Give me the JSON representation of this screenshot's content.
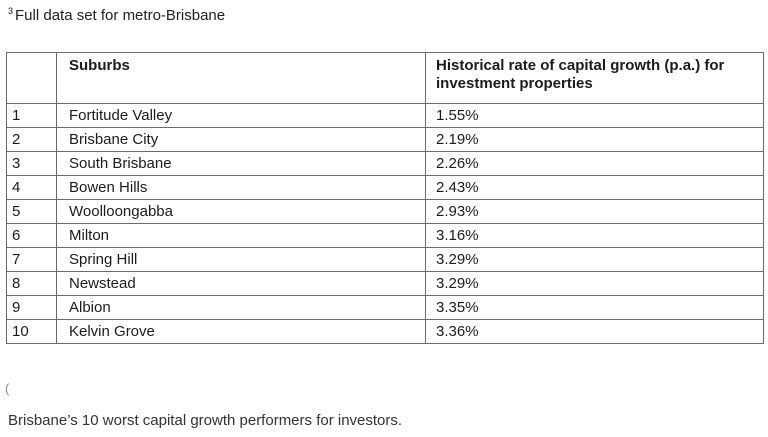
{
  "heading": {
    "marker": "3",
    "text": "Full data set for metro-Brisbane"
  },
  "table": {
    "headers": {
      "rank": "",
      "suburb": "Suburbs",
      "growth": "Historical rate of capital growth (p.a.) for investment properties"
    },
    "rows": [
      {
        "rank": "1",
        "suburb": "Fortitude Valley",
        "growth": "1.55%"
      },
      {
        "rank": "2",
        "suburb": "Brisbane City",
        "growth": "2.19%"
      },
      {
        "rank": "3",
        "suburb": "South Brisbane",
        "growth": "2.26%"
      },
      {
        "rank": "4",
        "suburb": "Bowen Hills",
        "growth": "2.43%"
      },
      {
        "rank": "5",
        "suburb": "Woolloongabba",
        "growth": "2.93%"
      },
      {
        "rank": "6",
        "suburb": "Milton",
        "growth": "3.16%"
      },
      {
        "rank": "7",
        "suburb": "Spring Hill",
        "growth": "3.29%"
      },
      {
        "rank": "8",
        "suburb": "Newstead",
        "growth": "3.29%"
      },
      {
        "rank": "9",
        "suburb": "Albion",
        "growth": "3.35%"
      },
      {
        "rank": "10",
        "suburb": "Kelvin Grove",
        "growth": "3.36%"
      }
    ]
  },
  "stray_mark": "(",
  "caption": "Brisbane’s 10 worst capital growth performers for investors."
}
